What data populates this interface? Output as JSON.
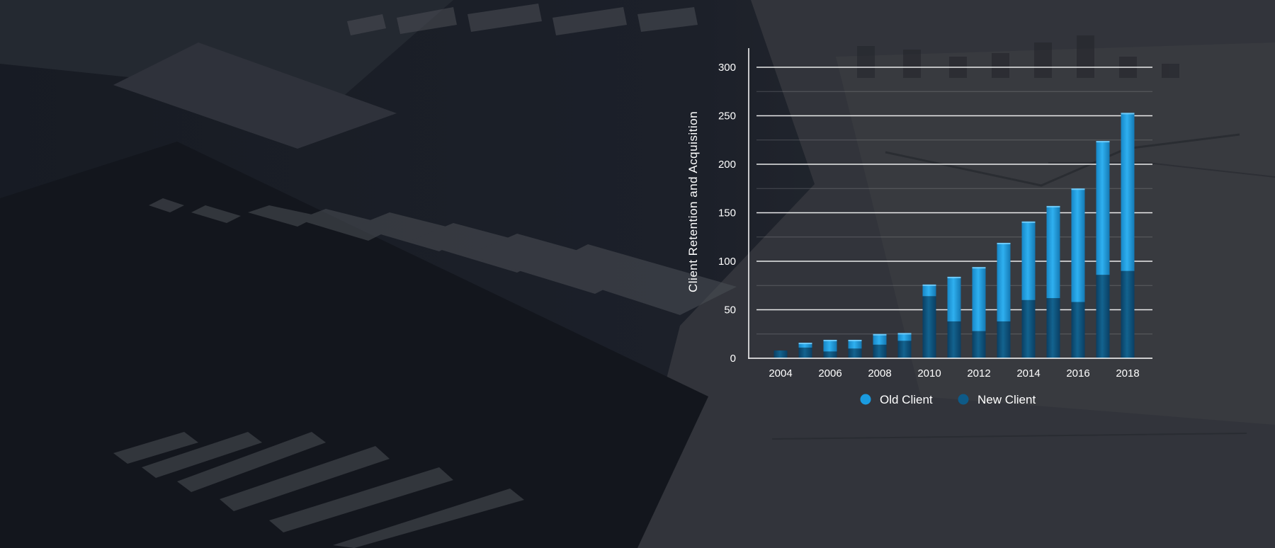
{
  "chart_data": {
    "type": "bar",
    "stacked": true,
    "ylabel": "Client Retention and Acquisition",
    "xlabel": "",
    "ylim": [
      0,
      300
    ],
    "yticks": [
      0,
      50,
      100,
      150,
      200,
      250,
      300
    ],
    "grid": true,
    "legend_position": "bottom",
    "categories": [
      "2004",
      "2005",
      "2006",
      "2007",
      "2008",
      "2009",
      "2010",
      "2011",
      "2012",
      "2013",
      "2014",
      "2015",
      "2016",
      "2017",
      "2018"
    ],
    "xtick_labels": [
      "2004",
      "",
      "2006",
      "",
      "2008",
      "",
      "2010",
      "",
      "2012",
      "",
      "2014",
      "",
      "2016",
      "",
      "2018"
    ],
    "series": [
      {
        "name": "New Client",
        "color": "#0e5a87",
        "values": [
          8,
          11,
          7,
          10,
          14,
          18,
          64,
          38,
          28,
          38,
          60,
          62,
          58,
          86,
          90
        ]
      },
      {
        "name": "Old Client",
        "color": "#1a9be0",
        "values": [
          0,
          5,
          12,
          9,
          11,
          8,
          12,
          46,
          66,
          81,
          81,
          95,
          117,
          138,
          163
        ]
      }
    ],
    "legend": [
      {
        "label": "Old Client",
        "color": "#1a9be0"
      },
      {
        "label": "New Client",
        "color": "#0e5a87"
      }
    ]
  }
}
